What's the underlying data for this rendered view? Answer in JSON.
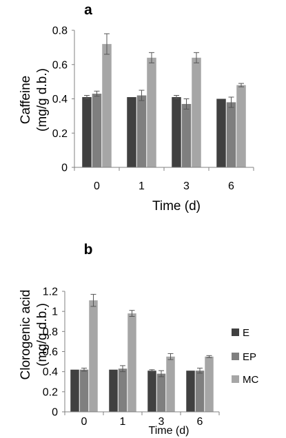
{
  "colors": {
    "E": "#404040",
    "EP": "#7f7f7f",
    "MC": "#a6a6a6",
    "axis": "#808080",
    "error": "#555555"
  },
  "legend": [
    {
      "key": "E",
      "label": "E"
    },
    {
      "key": "EP",
      "label": "EP"
    },
    {
      "key": "MC",
      "label": "MC"
    }
  ],
  "chart_data": [
    {
      "type": "bar",
      "panel_label": "a",
      "title": "",
      "xlabel": "Time (d)",
      "ylabel_line1": "Caffeine",
      "ylabel_line2": "(mg/g d.b.)",
      "categories": [
        "0",
        "1",
        "3",
        "6"
      ],
      "ylim": [
        0,
        0.8
      ],
      "yticks": [
        0,
        0.2,
        0.4,
        0.6,
        0.8
      ],
      "ytick_labels": [
        "0",
        "0.2",
        "0.4",
        "0.6",
        "0.8"
      ],
      "grid": false,
      "series": [
        {
          "name": "E",
          "values": [
            0.41,
            0.41,
            0.41,
            0.4
          ],
          "errors": [
            0.01,
            0.0,
            0.01,
            0.0
          ]
        },
        {
          "name": "EP",
          "values": [
            0.43,
            0.42,
            0.37,
            0.38
          ],
          "errors": [
            0.015,
            0.03,
            0.03,
            0.03
          ]
        },
        {
          "name": "MC",
          "values": [
            0.72,
            0.64,
            0.64,
            0.48
          ],
          "errors": [
            0.06,
            0.03,
            0.03,
            0.01
          ]
        }
      ]
    },
    {
      "type": "bar",
      "panel_label": "b",
      "title": "",
      "xlabel": "Time (d)",
      "ylabel_line1": "Clorogenic acid",
      "ylabel_line2": "(mg/g d.b.)",
      "categories": [
        "0",
        "1",
        "3",
        "6"
      ],
      "ylim": [
        0,
        1.2
      ],
      "yticks": [
        0,
        0.2,
        0.4,
        0.6,
        0.8,
        1,
        1.2
      ],
      "ytick_labels": [
        "0",
        "0.2",
        "0.4",
        "0.6",
        "0.8",
        "1",
        "1.2"
      ],
      "grid": false,
      "legend_position": "right",
      "series": [
        {
          "name": "E",
          "values": [
            0.42,
            0.42,
            0.41,
            0.41
          ],
          "errors": [
            0.0,
            0.0,
            0.01,
            0.0
          ]
        },
        {
          "name": "EP",
          "values": [
            0.42,
            0.43,
            0.38,
            0.41
          ],
          "errors": [
            0.015,
            0.03,
            0.03,
            0.025
          ]
        },
        {
          "name": "MC",
          "values": [
            1.11,
            0.98,
            0.55,
            0.55
          ],
          "errors": [
            0.06,
            0.03,
            0.03,
            0.01
          ]
        }
      ]
    }
  ]
}
